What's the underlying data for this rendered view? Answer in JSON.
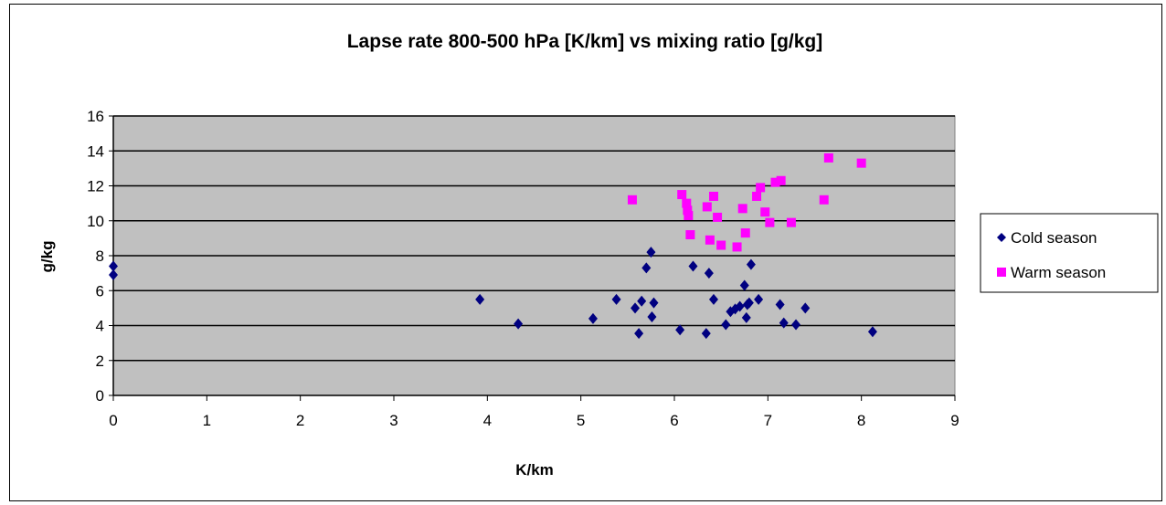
{
  "chart_data": {
    "type": "scatter",
    "title": "Lapse rate 800-500 hPa [K/km] vs mixing ratio [g/kg]",
    "xlabel": "K/km",
    "ylabel": "g/kg",
    "xlim": [
      0,
      9
    ],
    "ylim": [
      0,
      16
    ],
    "x_ticks": [
      "0",
      "1",
      "2",
      "3",
      "4",
      "5",
      "6",
      "7",
      "8",
      "9"
    ],
    "y_ticks": [
      "0",
      "2",
      "4",
      "6",
      "8",
      "10",
      "12",
      "14",
      "16"
    ],
    "grid": "horizontal",
    "legend_position": "right",
    "plot_background": "#c0c0c0",
    "series": [
      {
        "name": "Cold season",
        "color": "#000080",
        "marker": "diamond",
        "points": [
          [
            0.0,
            7.4
          ],
          [
            0.0,
            6.9
          ],
          [
            3.92,
            5.5
          ],
          [
            4.33,
            4.1
          ],
          [
            5.13,
            4.4
          ],
          [
            5.38,
            5.5
          ],
          [
            5.58,
            5.0
          ],
          [
            5.62,
            3.55
          ],
          [
            5.65,
            5.4
          ],
          [
            5.7,
            7.3
          ],
          [
            5.75,
            8.2
          ],
          [
            5.76,
            4.5
          ],
          [
            5.78,
            5.3
          ],
          [
            6.06,
            3.75
          ],
          [
            6.2,
            7.4
          ],
          [
            6.34,
            3.55
          ],
          [
            6.37,
            7.0
          ],
          [
            6.42,
            5.5
          ],
          [
            6.55,
            4.05
          ],
          [
            6.6,
            4.8
          ],
          [
            6.65,
            4.95
          ],
          [
            6.7,
            5.1
          ],
          [
            6.75,
            6.3
          ],
          [
            6.78,
            5.2
          ],
          [
            6.77,
            4.45
          ],
          [
            6.82,
            7.5
          ],
          [
            6.8,
            5.3
          ],
          [
            6.9,
            5.5
          ],
          [
            7.13,
            5.2
          ],
          [
            7.17,
            4.15
          ],
          [
            7.3,
            4.05
          ],
          [
            7.4,
            5.0
          ],
          [
            8.12,
            3.65
          ]
        ]
      },
      {
        "name": "Warm season",
        "color": "#ff00ff",
        "marker": "square",
        "points": [
          [
            5.55,
            11.2
          ],
          [
            6.08,
            11.5
          ],
          [
            6.13,
            11.0
          ],
          [
            6.14,
            10.6
          ],
          [
            6.15,
            10.3
          ],
          [
            6.17,
            9.2
          ],
          [
            6.35,
            10.8
          ],
          [
            6.38,
            8.9
          ],
          [
            6.42,
            11.4
          ],
          [
            6.46,
            10.2
          ],
          [
            6.5,
            8.6
          ],
          [
            6.67,
            8.5
          ],
          [
            6.73,
            10.7
          ],
          [
            6.76,
            9.3
          ],
          [
            6.88,
            11.4
          ],
          [
            6.92,
            11.9
          ],
          [
            6.97,
            10.5
          ],
          [
            7.02,
            9.9
          ],
          [
            7.08,
            12.2
          ],
          [
            7.14,
            12.3
          ],
          [
            7.25,
            9.9
          ],
          [
            7.6,
            11.2
          ],
          [
            7.65,
            13.6
          ],
          [
            8.0,
            13.3
          ]
        ]
      }
    ]
  }
}
